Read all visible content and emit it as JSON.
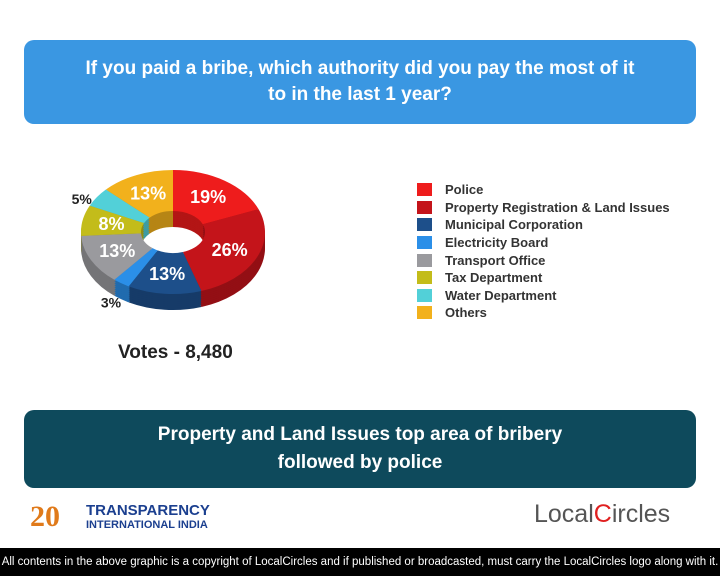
{
  "header": {
    "question": "If you paid a bribe, which authority did you pay the most of it to in the last 1 year?"
  },
  "chart_data": {
    "type": "pie",
    "style": "3d-donut",
    "categories": [
      "Police",
      "Property Registration & Land Issues",
      "Municipal Corporation",
      "Electricity Board",
      "Transport Office",
      "Tax Department",
      "Water Department",
      "Others"
    ],
    "values": [
      19,
      26,
      13,
      3,
      13,
      8,
      5,
      13
    ],
    "labels": [
      "19%",
      "26%",
      "13%",
      "3%",
      "13%",
      "8%",
      "5%",
      "13%"
    ],
    "colors": [
      "#ee1c1c",
      "#c4141a",
      "#1d4f8a",
      "#2b8fe8",
      "#9a9a9e",
      "#c3bc1a",
      "#52d0d8",
      "#f2b11c"
    ],
    "legend_position": "right"
  },
  "votes": "Votes - 8,480",
  "conclusion": "Property and Land Issues top area of bribery followed by police",
  "logos": {
    "ti_line1": "TRANSPARENCY",
    "ti_line2": "INTERNATIONAL INDIA",
    "ti_number": "20",
    "lc_local": "Local",
    "lc_c": "C",
    "lc_ircles": "ircles"
  },
  "footer": "All contents in the above graphic is a copyright of LocalCircles and if published or broadcasted, must carry the LocalCircles logo along with it."
}
